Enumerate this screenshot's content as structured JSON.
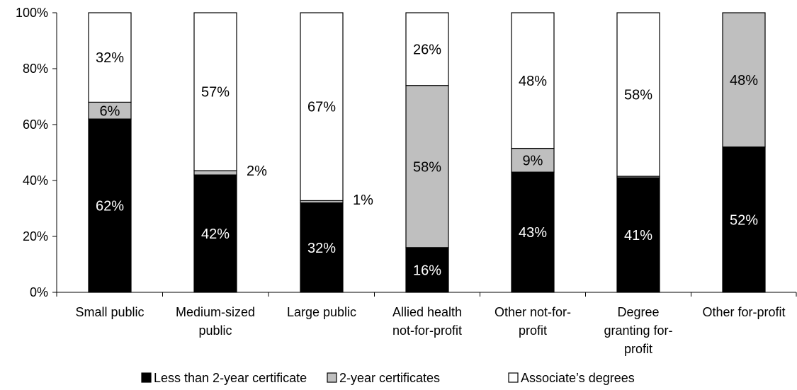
{
  "chart_data": {
    "type": "bar",
    "stacked": true,
    "categories": [
      [
        "Small public"
      ],
      [
        "Medium-sized",
        "public"
      ],
      [
        "Large public"
      ],
      [
        "Allied health",
        "not-for-profit"
      ],
      [
        "Other not-for-",
        "profit"
      ],
      [
        "Degree",
        "granting for-",
        "profit"
      ],
      [
        "Other for-profit"
      ]
    ],
    "series": [
      {
        "name": "Less than 2-year certificate",
        "color": "#000000",
        "values": [
          62,
          42,
          32,
          16,
          43,
          41,
          52
        ],
        "labels": [
          "62%",
          "42%",
          "32%",
          "16%",
          "43%",
          "41%",
          "52%"
        ]
      },
      {
        "name": "2-year certificates",
        "color": "#bfbfbf",
        "values": [
          6,
          1.5,
          0.8,
          58,
          8.5,
          0.5,
          48
        ],
        "labels": [
          "6%",
          "2%",
          "1%",
          "58%",
          "9%",
          "",
          "48%"
        ]
      },
      {
        "name": "Associate’s degrees",
        "color": "#ffffff",
        "values": [
          32,
          56.5,
          67.2,
          26,
          48.5,
          58.5,
          0
        ],
        "labels": [
          "32%",
          "57%",
          "67%",
          "26%",
          "48%",
          "58%",
          ""
        ]
      }
    ],
    "yticks": [
      "0%",
      "20%",
      "40%",
      "60%",
      "80%",
      "100%"
    ],
    "ylim": [
      0,
      100
    ],
    "xlabel": "",
    "ylabel": "",
    "grid": false,
    "legend_position": "bottom"
  }
}
